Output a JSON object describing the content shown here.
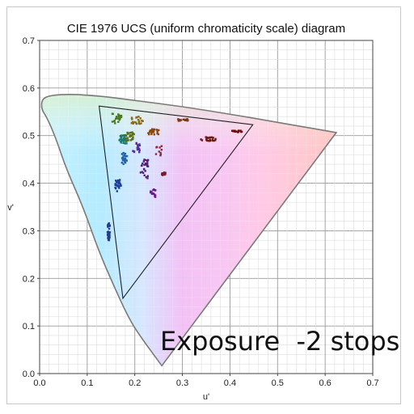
{
  "chart_data": {
    "type": "scatter",
    "title": "CIE 1976 UCS (uniform chromaticity scale) diagram",
    "xlabel": "u'",
    "ylabel": "v'",
    "xlim": [
      0.0,
      0.7
    ],
    "ylim": [
      0.0,
      0.7
    ],
    "x_ticks": [
      "0.0",
      "0.1",
      "0.2",
      "0.3",
      "0.4",
      "0.5",
      "0.6",
      "0.7"
    ],
    "y_ticks": [
      "0.0",
      "0.1",
      "0.2",
      "0.3",
      "0.4",
      "0.5",
      "0.6",
      "0.7"
    ],
    "grid": "on",
    "overlay_text": "Exposure  -2 stops",
    "spectral_locus": [
      [
        0.2568,
        0.0165
      ],
      [
        0.2091,
        0.0813
      ],
      [
        0.1855,
        0.12
      ],
      [
        0.1546,
        0.187
      ],
      [
        0.1241,
        0.258
      ],
      [
        0.0914,
        0.35
      ],
      [
        0.0567,
        0.428
      ],
      [
        0.0339,
        0.495
      ],
      [
        0.0149,
        0.539
      ],
      [
        0.0035,
        0.556
      ],
      [
        0.005,
        0.578
      ],
      [
        0.026,
        0.585
      ],
      [
        0.064,
        0.587
      ],
      [
        0.12,
        0.584
      ],
      [
        0.2,
        0.574
      ],
      [
        0.3,
        0.561
      ],
      [
        0.4,
        0.545
      ],
      [
        0.5,
        0.528
      ],
      [
        0.58,
        0.514
      ],
      [
        0.6234,
        0.5065
      ]
    ],
    "gamut_triangle": [
      [
        0.125,
        0.562
      ],
      [
        0.448,
        0.523
      ],
      [
        0.175,
        0.158
      ]
    ],
    "clusters": [
      {
        "cx": 0.145,
        "cy": 0.298,
        "sx": 0.003,
        "sy": 0.018,
        "n": 34,
        "color": "#243c8a"
      },
      {
        "cx": 0.165,
        "cy": 0.395,
        "sx": 0.006,
        "sy": 0.012,
        "n": 28,
        "color": "#1d3f9a"
      },
      {
        "cx": 0.178,
        "cy": 0.452,
        "sx": 0.006,
        "sy": 0.012,
        "n": 26,
        "color": "#2464a8"
      },
      {
        "cx": 0.175,
        "cy": 0.492,
        "sx": 0.008,
        "sy": 0.009,
        "n": 30,
        "color": "#1e7a6e"
      },
      {
        "cx": 0.19,
        "cy": 0.498,
        "sx": 0.01,
        "sy": 0.01,
        "n": 26,
        "color": "#5a6e1a"
      },
      {
        "cx": 0.162,
        "cy": 0.536,
        "sx": 0.01,
        "sy": 0.01,
        "n": 22,
        "color": "#4b7a1e"
      },
      {
        "cx": 0.205,
        "cy": 0.532,
        "sx": 0.012,
        "sy": 0.008,
        "n": 24,
        "color": "#8a6a1c"
      },
      {
        "cx": 0.24,
        "cy": 0.508,
        "sx": 0.012,
        "sy": 0.006,
        "n": 26,
        "color": "#8a4a0e"
      },
      {
        "cx": 0.3,
        "cy": 0.533,
        "sx": 0.012,
        "sy": 0.002,
        "n": 18,
        "color": "#7a3a1a"
      },
      {
        "cx": 0.355,
        "cy": 0.493,
        "sx": 0.016,
        "sy": 0.004,
        "n": 22,
        "color": "#6a1a10"
      },
      {
        "cx": 0.415,
        "cy": 0.509,
        "sx": 0.012,
        "sy": 0.002,
        "n": 14,
        "color": "#6a0a0a"
      },
      {
        "cx": 0.25,
        "cy": 0.468,
        "sx": 0.008,
        "sy": 0.01,
        "n": 10,
        "color": "#8a2a3a"
      },
      {
        "cx": 0.26,
        "cy": 0.42,
        "sx": 0.005,
        "sy": 0.004,
        "n": 10,
        "color": "#7a1a2a"
      },
      {
        "cx": 0.22,
        "cy": 0.43,
        "sx": 0.008,
        "sy": 0.02,
        "n": 26,
        "color": "#5a1a7a"
      },
      {
        "cx": 0.238,
        "cy": 0.38,
        "sx": 0.006,
        "sy": 0.01,
        "n": 16,
        "color": "#6a1a8a"
      },
      {
        "cx": 0.203,
        "cy": 0.475,
        "sx": 0.008,
        "sy": 0.01,
        "n": 18,
        "color": "#5a2a9a"
      }
    ]
  }
}
